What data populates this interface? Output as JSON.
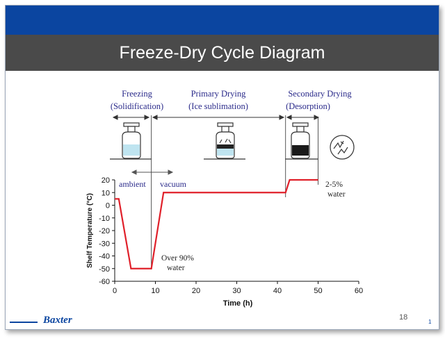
{
  "slide": {
    "title": "Freeze-Dry Cycle Diagram",
    "page_number": "18",
    "logo": "Baxter",
    "corner_mark": "1"
  },
  "phases": [
    {
      "line1": "Freezing",
      "line2": "(Solidification)"
    },
    {
      "line1": "Primary Drying",
      "line2": "(Ice sublimation)"
    },
    {
      "line1": "Secondary Drying",
      "line2": "(Desorption)"
    }
  ],
  "annotations": {
    "ambient": "ambient",
    "vacuum": "vacuum",
    "over90_line1": "Over 90%",
    "over90_line2": "water",
    "residual_line1": "2-5%",
    "residual_line2": "water"
  },
  "icons": [
    "vial-frozen-icon",
    "vial-sublimating-icon",
    "vial-dried-icon",
    "dried-cake-icon"
  ],
  "colors": {
    "curve": "#e0202a",
    "header": "#0b45a0",
    "title_bar": "#4a4a4a",
    "annotation_text": "#2a2a8a"
  },
  "chart_data": {
    "type": "line",
    "xlabel": "Time (h)",
    "ylabel": "Shelf Temperature (°C)",
    "xlim": [
      0,
      60
    ],
    "ylim": [
      -60,
      20
    ],
    "xticks": [
      0,
      10,
      20,
      30,
      40,
      50,
      60
    ],
    "yticks": [
      -60,
      -50,
      -40,
      -30,
      -20,
      -10,
      0,
      10,
      20
    ],
    "grid": false,
    "series": [
      {
        "x": [
          0,
          1,
          4,
          9,
          12,
          42,
          43,
          50
        ],
        "y": [
          5,
          5,
          -50,
          -50,
          10,
          10,
          20,
          20
        ]
      }
    ],
    "phase_boundaries_h": [
      9,
      42,
      50
    ]
  }
}
